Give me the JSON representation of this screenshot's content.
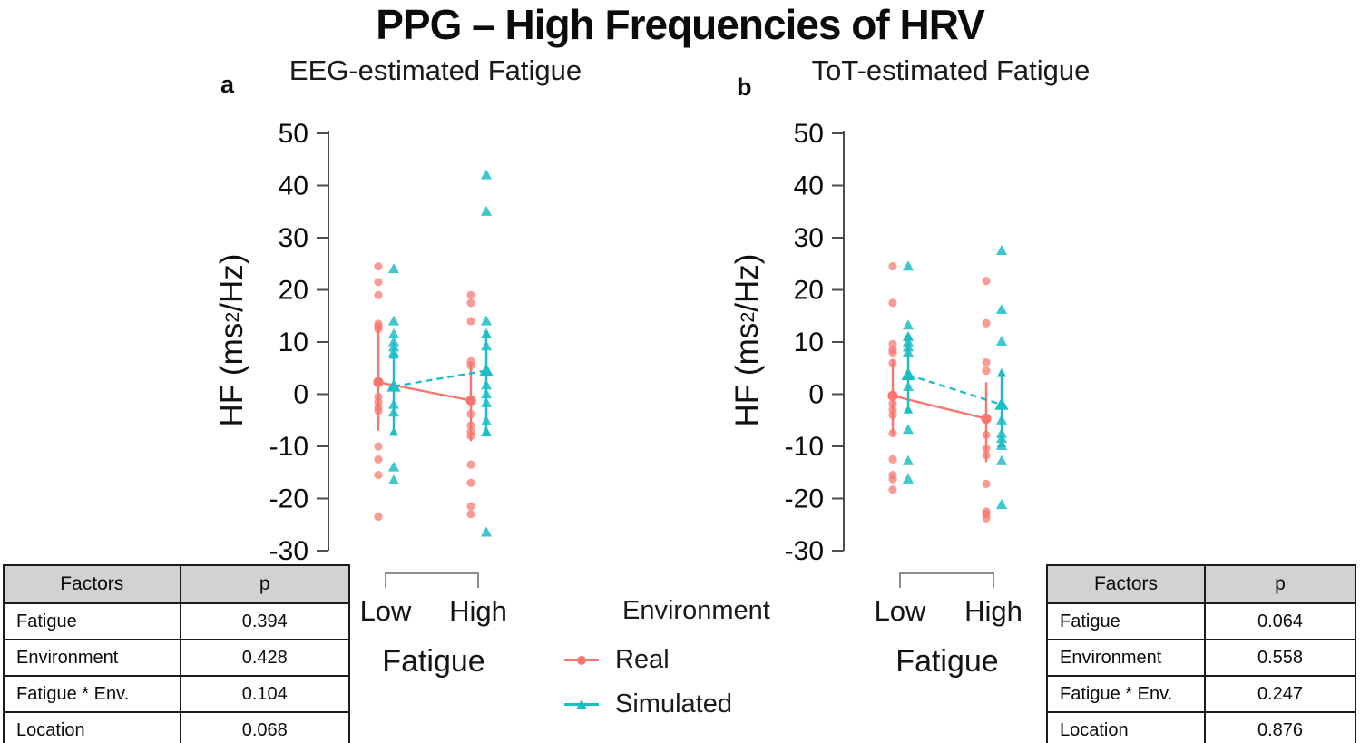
{
  "title": "PPG – High Frequencies of HRV",
  "ylabel": {
    "prefix": "HF (ms",
    "sup": "2",
    "suffix": "/Hz)"
  },
  "legend": {
    "title": "Environment",
    "items": [
      {
        "label": "Real",
        "color": "#F8766D",
        "marker": "circle"
      },
      {
        "label": "Simulated",
        "color": "#1CBEC5",
        "marker": "triangle"
      }
    ]
  },
  "tables": {
    "left": {
      "headers": [
        "Factors",
        "p"
      ],
      "rows": [
        [
          "Fatigue",
          "0.394"
        ],
        [
          "Environment",
          "0.428"
        ],
        [
          "Fatigue * Env.",
          "0.104"
        ],
        [
          "Location",
          "0.068"
        ]
      ]
    },
    "right": {
      "headers": [
        "Factors",
        "p"
      ],
      "rows": [
        [
          "Fatigue",
          "0.064"
        ],
        [
          "Environment",
          "0.558"
        ],
        [
          "Fatigue * Env.",
          "0.247"
        ],
        [
          "Location",
          "0.876"
        ]
      ]
    }
  },
  "chart_data": [
    {
      "id": "a",
      "panel_label": "a",
      "title": "EEG-estimated Fatigue",
      "type": "scatter",
      "xlabel": "Fatigue",
      "ylabel": "HF (ms2/Hz)",
      "x_categories": [
        "Low",
        "High"
      ],
      "yticks": [
        50,
        40,
        30,
        20,
        10,
        0,
        -10,
        -20,
        -30
      ],
      "ylim": [
        -30,
        50
      ],
      "series": [
        {
          "name": "Real",
          "marker": "circle",
          "color": "#F8766D",
          "line": "solid",
          "groups": [
            {
              "category": "Low",
              "points": [
                24.5,
                21.5,
                19,
                13.5,
                13,
                12.5,
                -0.5,
                -1.5,
                -2.5,
                -3.2,
                -10,
                -12.5,
                -15.5,
                -23.5
              ],
              "mean": 2.3,
              "ci": [
                -7,
                12.5
              ]
            },
            {
              "category": "High",
              "points": [
                19,
                17.5,
                14,
                6.3,
                5.5,
                -3.8,
                -6,
                -7.2,
                -8,
                -13.5,
                -17,
                -21.5,
                -23
              ],
              "mean": -1.2,
              "ci": [
                -9,
                5.7
              ]
            }
          ]
        },
        {
          "name": "Simulated",
          "marker": "triangle",
          "color": "#1CBEC5",
          "line": "dashed",
          "groups": [
            {
              "category": "Low",
              "points": [
                24,
                14,
                11.5,
                10,
                9,
                8,
                -2,
                -3.5,
                -14,
                -16.5
              ],
              "mean": 1.5,
              "ci": [
                -7.3,
                7.5
              ]
            },
            {
              "category": "High",
              "points": [
                42,
                35,
                14,
                11.5,
                9.2,
                1.7,
                0,
                -1.7,
                -5.2,
                -7.3,
                -26.5
              ],
              "mean": 4.5,
              "ci": [
                -7.3,
                11.5
              ]
            }
          ]
        }
      ]
    },
    {
      "id": "b",
      "panel_label": "b",
      "title": "ToT-estimated Fatigue",
      "type": "scatter",
      "xlabel": "Fatigue",
      "ylabel": "HF (ms2/Hz)",
      "x_categories": [
        "Low",
        "High"
      ],
      "yticks": [
        50,
        40,
        30,
        20,
        10,
        0,
        -10,
        -20,
        -30
      ],
      "ylim": [
        -30,
        50
      ],
      "series": [
        {
          "name": "Real",
          "marker": "circle",
          "color": "#F8766D",
          "line": "solid",
          "groups": [
            {
              "category": "Low",
              "points": [
                24.5,
                17.5,
                9.6,
                8.5,
                8,
                6,
                -1.8,
                -3,
                -4,
                -7.5,
                -12.5,
                -15.5,
                -16.3,
                -18.3
              ],
              "mean": -0.3,
              "ci": [
                -7.8,
                6.6
              ]
            },
            {
              "category": "High",
              "points": [
                21.7,
                13.6,
                6.1,
                4.5,
                -7.8,
                -10.4,
                -11.7,
                -17.2,
                -22.5,
                -23,
                -23.8
              ],
              "mean": -4.7,
              "ci": [
                -13,
                2.3
              ]
            }
          ]
        },
        {
          "name": "Simulated",
          "marker": "triangle",
          "color": "#1CBEC5",
          "line": "dashed",
          "groups": [
            {
              "category": "Low",
              "points": [
                24.5,
                13.2,
                11,
                10,
                9,
                8,
                1.4,
                -6.8,
                -12.8,
                -16.3
              ],
              "mean": 3.7,
              "ci": [
                -3,
                11
              ]
            },
            {
              "category": "High",
              "points": [
                27.5,
                16.2,
                10.1,
                -5,
                -7.6,
                -8.5,
                -9.9,
                -12.8,
                -21.2
              ],
              "mean": -2,
              "ci": [
                -9.5,
                4
              ]
            }
          ]
        }
      ]
    }
  ]
}
